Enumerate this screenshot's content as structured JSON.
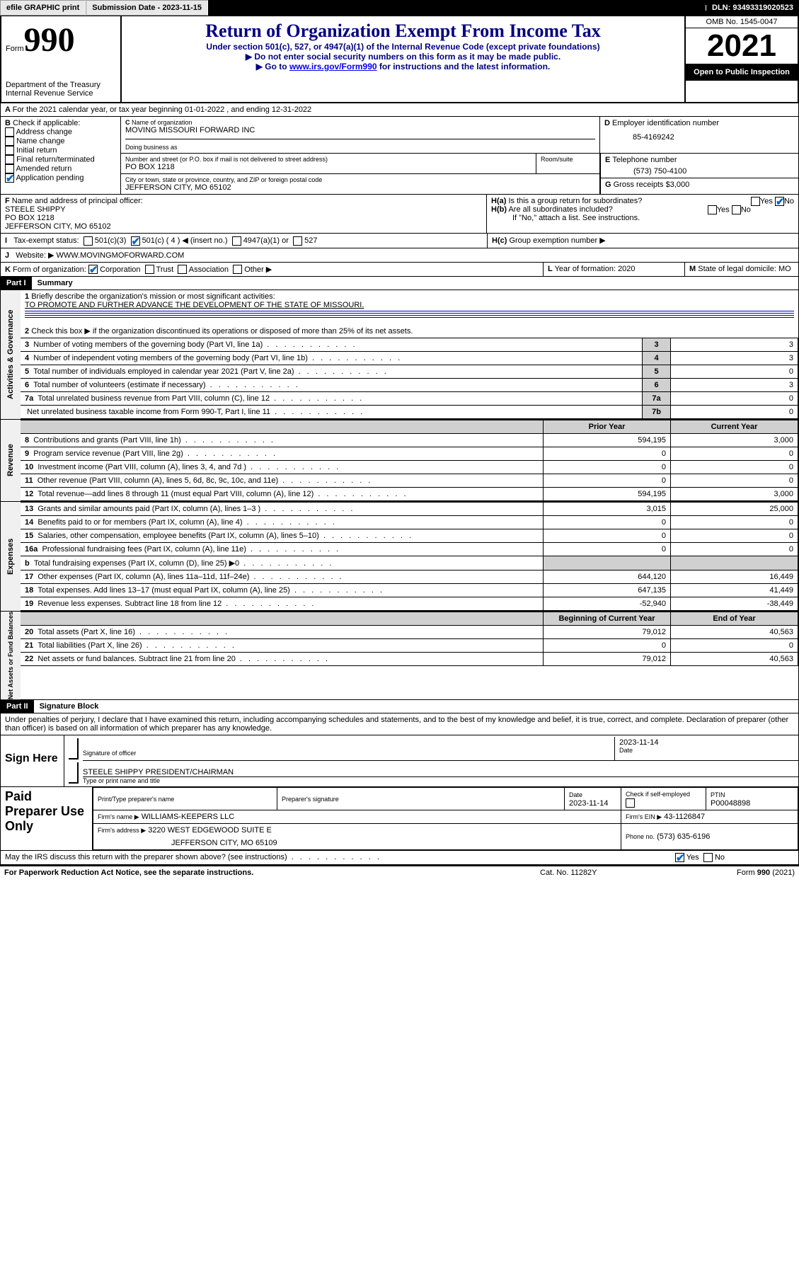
{
  "topbar": {
    "efile": "efile GRAPHIC print",
    "submission": "Submission Date - 2023-11-15",
    "dln": "DLN: 93493319020523"
  },
  "header": {
    "form": "Form",
    "num": "990",
    "dept": "Department of the Treasury",
    "irs": "Internal Revenue Service",
    "title": "Return of Organization Exempt From Income Tax",
    "sub1": "Under section 501(c), 527, or 4947(a)(1) of the Internal Revenue Code (except private foundations)",
    "sub2": "Do not enter social security numbers on this form as it may be made public.",
    "sub3_a": "Go to ",
    "sub3_link": "www.irs.gov/Form990",
    "sub3_b": " for instructions and the latest information.",
    "omb": "OMB No. 1545-0047",
    "year": "2021",
    "open": "Open to Public Inspection"
  },
  "A": {
    "text": "For the 2021 calendar year, or tax year beginning 01-01-2022   , and ending 12-31-2022"
  },
  "B": {
    "label": "Check if applicable:",
    "opts": [
      "Address change",
      "Name change",
      "Initial return",
      "Final return/terminated",
      "Amended return",
      "Application pending"
    ]
  },
  "C": {
    "nameLabel": "Name of organization",
    "name": "MOVING MISSOURI FORWARD INC",
    "dbaLabel": "Doing business as",
    "streetLabel": "Number and street (or P.O. box if mail is not delivered to street address)",
    "street": "PO BOX 1218",
    "roomLabel": "Room/suite",
    "cityLabel": "City or town, state or province, country, and ZIP or foreign postal code",
    "city": "JEFFERSON CITY, MO  65102"
  },
  "D": {
    "label": "Employer identification number",
    "val": "85-4169242"
  },
  "E": {
    "label": "Telephone number",
    "val": "(573) 750-4100"
  },
  "G": {
    "label": "Gross receipts $",
    "val": "3,000"
  },
  "F": {
    "label": "Name and address of principal officer:",
    "l1": "STEELE SHIPPY",
    "l2": "PO BOX 1218",
    "l3": "JEFFERSON CITY, MO  65102"
  },
  "H": {
    "a": "Is this a group return for subordinates?",
    "b": "Are all subordinates included?",
    "note": "If \"No,\" attach a list. See instructions.",
    "c": "Group exemption number ▶"
  },
  "I": {
    "label": "Tax-exempt status:",
    "c1": "501(c)(3)",
    "c2": "501(c) ( 4 ) ◀ (insert no.)",
    "c3": "4947(a)(1) or",
    "c4": "527"
  },
  "J": {
    "label": "Website: ▶",
    "val": "WWW.MOVINGMOFORWARD.COM"
  },
  "K": {
    "label": "Form of organization:",
    "o": [
      "Corporation",
      "Trust",
      "Association",
      "Other ▶"
    ]
  },
  "L": {
    "label": "Year of formation:",
    "val": "2020"
  },
  "M": {
    "label": "State of legal domicile:",
    "val": "MO"
  },
  "part1": {
    "label": "Part I",
    "title": "Summary"
  },
  "sec1": {
    "title": "Activities & Governance",
    "l1": "Briefly describe the organization's mission or most significant activities:",
    "l1v": "TO PROMOTE AND FURTHER ADVANCE THE DEVELOPMENT OF THE STATE OF MISSOURI.",
    "l2": "Check this box ▶        if the organization discontinued its operations or disposed of more than 25% of its net assets.",
    "rows": [
      {
        "n": "3",
        "t": "Number of voting members of the governing body (Part VI, line 1a)",
        "b": "3",
        "v": "3"
      },
      {
        "n": "4",
        "t": "Number of independent voting members of the governing body (Part VI, line 1b)",
        "b": "4",
        "v": "3"
      },
      {
        "n": "5",
        "t": "Total number of individuals employed in calendar year 2021 (Part V, line 2a)",
        "b": "5",
        "v": "0"
      },
      {
        "n": "6",
        "t": "Total number of volunteers (estimate if necessary)",
        "b": "6",
        "v": "3"
      },
      {
        "n": "7a",
        "t": "Total unrelated business revenue from Part VIII, column (C), line 12",
        "b": "7a",
        "v": "0"
      },
      {
        "n": "",
        "t": "Net unrelated business taxable income from Form 990-T, Part I, line 11",
        "b": "7b",
        "v": "0"
      }
    ]
  },
  "cols": {
    "prior": "Prior Year",
    "curr": "Current Year",
    "boy": "Beginning of Current Year",
    "eoy": "End of Year"
  },
  "rev": {
    "title": "Revenue",
    "rows": [
      {
        "n": "8",
        "t": "Contributions and grants (Part VIII, line 1h)",
        "p": "594,195",
        "c": "3,000"
      },
      {
        "n": "9",
        "t": "Program service revenue (Part VIII, line 2g)",
        "p": "0",
        "c": "0"
      },
      {
        "n": "10",
        "t": "Investment income (Part VIII, column (A), lines 3, 4, and 7d )",
        "p": "0",
        "c": "0"
      },
      {
        "n": "11",
        "t": "Other revenue (Part VIII, column (A), lines 5, 6d, 8c, 9c, 10c, and 11e)",
        "p": "0",
        "c": "0"
      },
      {
        "n": "12",
        "t": "Total revenue—add lines 8 through 11 (must equal Part VIII, column (A), line 12)",
        "p": "594,195",
        "c": "3,000"
      }
    ]
  },
  "exp": {
    "title": "Expenses",
    "rows": [
      {
        "n": "13",
        "t": "Grants and similar amounts paid (Part IX, column (A), lines 1–3 )",
        "p": "3,015",
        "c": "25,000"
      },
      {
        "n": "14",
        "t": "Benefits paid to or for members (Part IX, column (A), line 4)",
        "p": "0",
        "c": "0"
      },
      {
        "n": "15",
        "t": "Salaries, other compensation, employee benefits (Part IX, column (A), lines 5–10)",
        "p": "0",
        "c": "0"
      },
      {
        "n": "16a",
        "t": "Professional fundraising fees (Part IX, column (A), line 11e)",
        "p": "0",
        "c": "0"
      },
      {
        "n": "b",
        "t": "Total fundraising expenses (Part IX, column (D), line 25) ▶0",
        "p": "",
        "c": "",
        "grey": true
      },
      {
        "n": "17",
        "t": "Other expenses (Part IX, column (A), lines 11a–11d, 11f–24e)",
        "p": "644,120",
        "c": "16,449"
      },
      {
        "n": "18",
        "t": "Total expenses. Add lines 13–17 (must equal Part IX, column (A), line 25)",
        "p": "647,135",
        "c": "41,449"
      },
      {
        "n": "19",
        "t": "Revenue less expenses. Subtract line 18 from line 12",
        "p": "-52,940",
        "c": "-38,449"
      }
    ]
  },
  "net": {
    "title": "Net Assets or Fund Balances",
    "rows": [
      {
        "n": "20",
        "t": "Total assets (Part X, line 16)",
        "p": "79,012",
        "c": "40,563"
      },
      {
        "n": "21",
        "t": "Total liabilities (Part X, line 26)",
        "p": "0",
        "c": "0"
      },
      {
        "n": "22",
        "t": "Net assets or fund balances. Subtract line 21 from line 20",
        "p": "79,012",
        "c": "40,563"
      }
    ]
  },
  "part2": {
    "label": "Part II",
    "title": "Signature Block",
    "decl": "Under penalties of perjury, I declare that I have examined this return, including accompanying schedules and statements, and to the best of my knowledge and belief, it is true, correct, and complete. Declaration of preparer (other than officer) is based on all information of which preparer has any knowledge."
  },
  "sign": {
    "here": "Sign Here",
    "sig": "Signature of officer",
    "date": "Date",
    "dval": "2023-11-14",
    "name": "STEELE SHIPPY PRESIDENT/CHAIRMAN",
    "typ": "Type or print name and title"
  },
  "paid": {
    "here": "Paid Preparer Use Only",
    "pn": "Print/Type preparer's name",
    "ps": "Preparer's signature",
    "d": "Date",
    "dv": "2023-11-14",
    "ck": "Check         if self-employed",
    "ptin": "PTIN",
    "ptinv": "P00048898",
    "fn": "Firm's name    ▶",
    "fnv": "WILLIAMS-KEEPERS LLC",
    "fe": "Firm's EIN ▶",
    "fev": "43-1126847",
    "fa": "Firm's address ▶",
    "fav1": "3220 WEST EDGEWOOD SUITE E",
    "fav2": "JEFFERSON CITY, MO  65109",
    "ph": "Phone no.",
    "phv": "(573) 635-6196"
  },
  "footer": {
    "may": "May the IRS discuss this return with the preparer shown above? (see instructions)",
    "pra": "For Paperwork Reduction Act Notice, see the separate instructions.",
    "cat": "Cat. No. 11282Y",
    "form": "Form 990 (2021)"
  }
}
